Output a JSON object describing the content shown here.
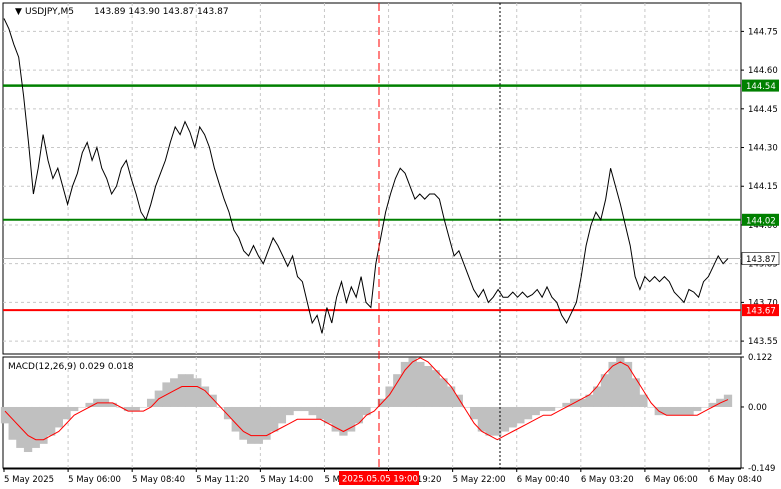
{
  "header": {
    "symbol": "USDJPY,M5",
    "ohlc": "143.89 143.90 143.87 143.87"
  },
  "macd_header": {
    "label": "MACD(12,26,9) 0.029 0.018"
  },
  "colors": {
    "price_line": "#000000",
    "resistance": "#008000",
    "support": "#ff0000",
    "macd_hist": "#c0c0c0",
    "macd_signal": "#ff0000",
    "grid": "#c8c8c8",
    "session_marker": "#ff0000",
    "day_separator": "#000000"
  },
  "chart_data": [
    {
      "type": "line",
      "name": "price",
      "x_labels": [
        "5 May 2025",
        "5 May 06:00",
        "5 May 08:40",
        "5 May 11:20",
        "5 May 14:00",
        "5 May 16:40",
        "5 May 19:20",
        "5 May 22:00",
        "6 May 00:40",
        "6 May 03:20",
        "6 May 06:00",
        "6 May 08:40"
      ],
      "highlight_label": "2025.05.05 19:00",
      "ylim": [
        143.5,
        144.86
      ],
      "y_ticks": [
        "144.75",
        "144.60",
        "144.45",
        "144.30",
        "144.15",
        "144.00",
        "143.85",
        "143.70",
        "143.55"
      ],
      "current_price": "143.87",
      "levels": [
        {
          "label": "144.54",
          "value": 144.54,
          "color": "green"
        },
        {
          "label": "144.02",
          "value": 144.02,
          "color": "green"
        },
        {
          "label": "143.67",
          "value": 143.67,
          "color": "red"
        }
      ],
      "values": [
        144.8,
        144.76,
        144.7,
        144.65,
        144.5,
        144.32,
        144.12,
        144.22,
        144.35,
        144.25,
        144.18,
        144.22,
        144.15,
        144.08,
        144.15,
        144.2,
        144.28,
        144.32,
        144.25,
        144.3,
        144.22,
        144.18,
        144.12,
        144.15,
        144.22,
        144.25,
        144.18,
        144.12,
        144.05,
        144.02,
        144.08,
        144.15,
        144.2,
        144.25,
        144.32,
        144.38,
        144.35,
        144.4,
        144.36,
        144.3,
        144.38,
        144.35,
        144.3,
        144.22,
        144.16,
        144.1,
        144.05,
        143.98,
        143.95,
        143.9,
        143.88,
        143.92,
        143.88,
        143.85,
        143.9,
        143.95,
        143.92,
        143.88,
        143.84,
        143.88,
        143.8,
        143.78,
        143.7,
        143.62,
        143.65,
        143.58,
        143.68,
        143.62,
        143.72,
        143.78,
        143.7,
        143.76,
        143.72,
        143.8,
        143.7,
        143.68,
        143.85,
        143.95,
        144.05,
        144.12,
        144.18,
        144.22,
        144.2,
        144.15,
        144.1,
        144.12,
        144.1,
        144.12,
        144.12,
        144.1,
        144.02,
        143.95,
        143.88,
        143.9,
        143.85,
        143.8,
        143.75,
        143.72,
        143.75,
        143.7,
        143.72,
        143.75,
        143.72,
        143.72,
        143.74,
        143.72,
        143.74,
        143.72,
        143.73,
        143.75,
        143.72,
        143.76,
        143.72,
        143.7,
        143.65,
        143.62,
        143.66,
        143.7,
        143.8,
        143.92,
        144.0,
        144.05,
        144.02,
        144.1,
        144.22,
        144.15,
        144.08,
        144.0,
        143.92,
        143.8,
        143.75,
        143.8,
        143.78,
        143.8,
        143.78,
        143.8,
        143.78,
        143.74,
        143.72,
        143.7,
        143.75,
        143.74,
        143.72,
        143.78,
        143.8,
        143.84,
        143.88,
        143.85,
        143.87
      ]
    },
    {
      "type": "bar",
      "name": "MACD(12,26,9)",
      "ylim": [
        -0.149,
        0.122
      ],
      "y_ticks": [
        "0.122",
        "0.00",
        "-0.149"
      ],
      "macd_value": 0.029,
      "signal_value": 0.018,
      "histogram": [
        -0.04,
        -0.08,
        -0.1,
        -0.11,
        -0.1,
        -0.09,
        -0.07,
        -0.05,
        -0.03,
        -0.01,
        0.0,
        0.01,
        0.02,
        0.02,
        0.01,
        0.0,
        -0.01,
        -0.01,
        0.0,
        0.02,
        0.04,
        0.06,
        0.07,
        0.08,
        0.08,
        0.07,
        0.05,
        0.03,
        0.0,
        -0.03,
        -0.06,
        -0.08,
        -0.09,
        -0.09,
        -0.08,
        -0.06,
        -0.04,
        -0.02,
        -0.01,
        -0.01,
        -0.02,
        -0.03,
        -0.04,
        -0.06,
        -0.07,
        -0.06,
        -0.04,
        -0.02,
        0.0,
        0.02,
        0.05,
        0.08,
        0.11,
        0.12,
        0.11,
        0.1,
        0.09,
        0.07,
        0.05,
        0.03,
        0.0,
        -0.03,
        -0.06,
        -0.07,
        -0.07,
        -0.06,
        -0.05,
        -0.04,
        -0.03,
        -0.02,
        -0.01,
        -0.01,
        0.0,
        0.01,
        0.02,
        0.02,
        0.03,
        0.05,
        0.08,
        0.11,
        0.12,
        0.11,
        0.07,
        0.03,
        0.0,
        -0.02,
        -0.02,
        -0.02,
        -0.02,
        -0.02,
        -0.01,
        0.0,
        0.01,
        0.02,
        0.03
      ],
      "signal": [
        -0.01,
        -0.03,
        -0.05,
        -0.07,
        -0.08,
        -0.08,
        -0.07,
        -0.06,
        -0.04,
        -0.02,
        -0.01,
        0.0,
        0.01,
        0.01,
        0.01,
        0.0,
        -0.01,
        -0.01,
        -0.01,
        0.0,
        0.02,
        0.03,
        0.04,
        0.05,
        0.05,
        0.05,
        0.04,
        0.02,
        0.0,
        -0.02,
        -0.04,
        -0.06,
        -0.07,
        -0.07,
        -0.07,
        -0.06,
        -0.05,
        -0.04,
        -0.03,
        -0.03,
        -0.03,
        -0.03,
        -0.04,
        -0.05,
        -0.06,
        -0.05,
        -0.04,
        -0.02,
        -0.01,
        0.01,
        0.03,
        0.06,
        0.09,
        0.11,
        0.12,
        0.11,
        0.09,
        0.07,
        0.05,
        0.02,
        -0.01,
        -0.04,
        -0.06,
        -0.07,
        -0.08,
        -0.07,
        -0.06,
        -0.05,
        -0.04,
        -0.03,
        -0.02,
        -0.02,
        -0.01,
        0.0,
        0.01,
        0.02,
        0.03,
        0.05,
        0.08,
        0.1,
        0.11,
        0.1,
        0.07,
        0.04,
        0.01,
        -0.01,
        -0.02,
        -0.02,
        -0.02,
        -0.02,
        -0.02,
        -0.01,
        0.0,
        0.01,
        0.018
      ]
    }
  ]
}
